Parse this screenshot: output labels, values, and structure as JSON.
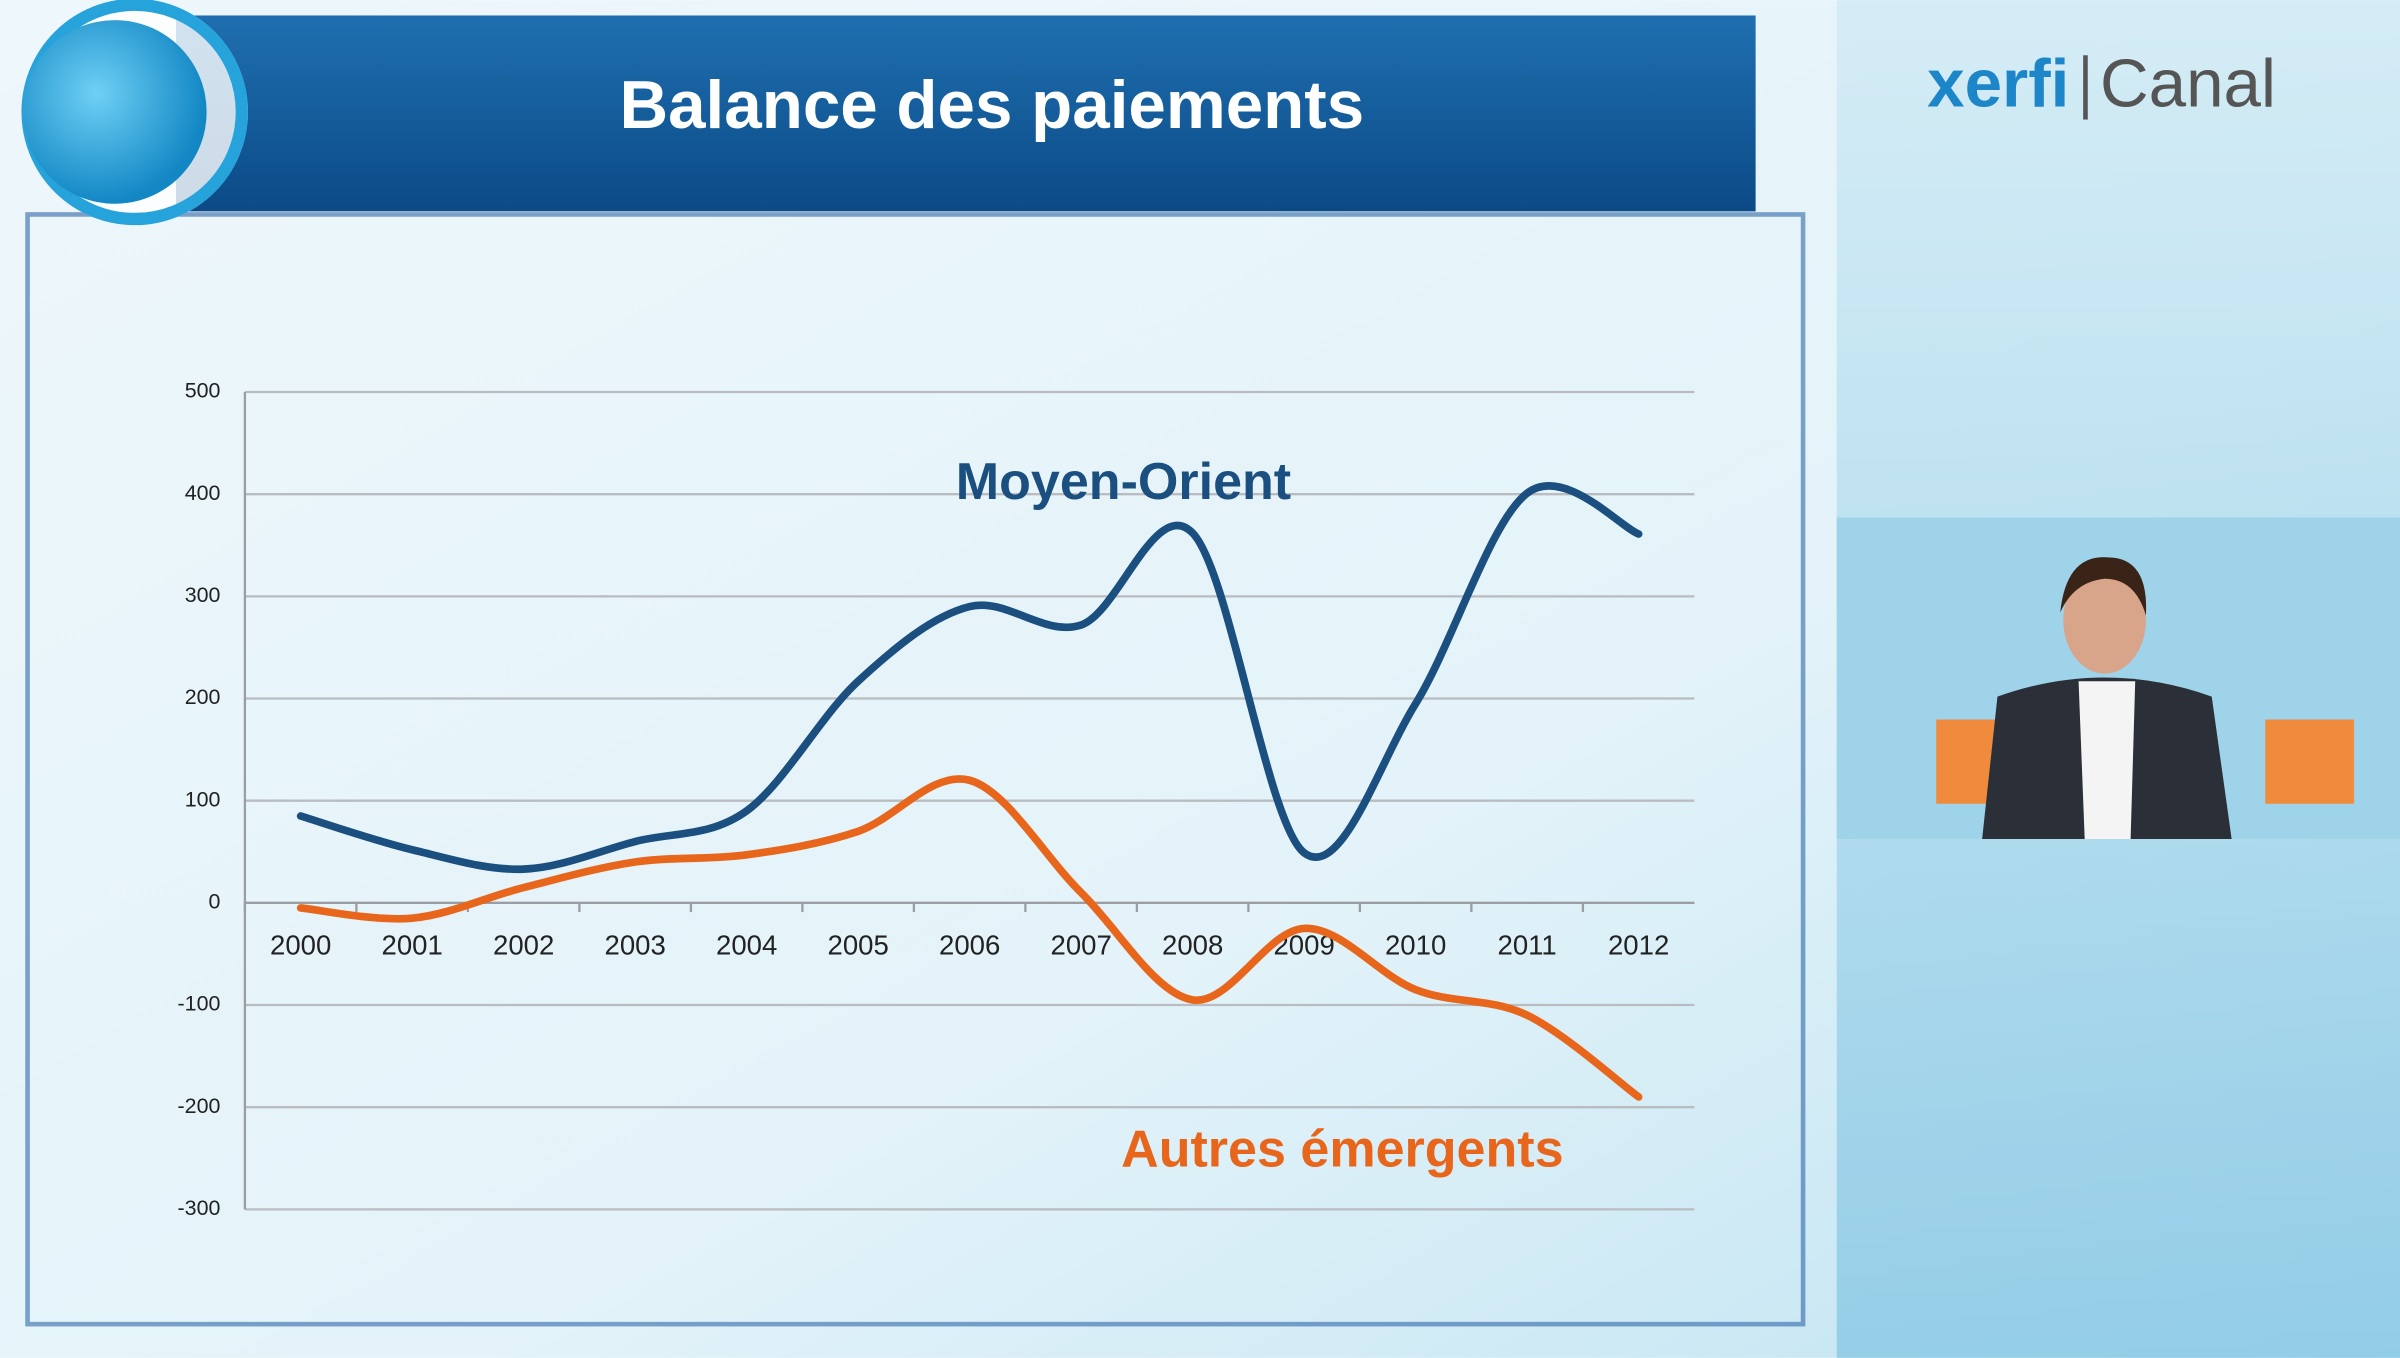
{
  "chart_data": {
    "type": "line",
    "title": "Balance des paiements",
    "brand": {
      "name": "xerfi",
      "channel": "Canal"
    },
    "categories": [
      "2000",
      "2001",
      "2002",
      "2003",
      "2004",
      "2005",
      "2006",
      "2007",
      "2008",
      "2009",
      "2010",
      "2011",
      "2012"
    ],
    "series": [
      {
        "name": "Moyen-Orient",
        "color": "#1b4f7f",
        "values": [
          85,
          52,
          33,
          60,
          90,
          217,
          290,
          272,
          362,
          49,
          195,
          401,
          361
        ]
      },
      {
        "name": "Autres émergents",
        "color": "#e8661c",
        "values": [
          -5,
          -15,
          15,
          40,
          47,
          70,
          120,
          10,
          -95,
          -25,
          -85,
          -110,
          -190
        ]
      }
    ],
    "ylim": [
      -300,
      500
    ],
    "yticks": [
      -300,
      -200,
      -100,
      0,
      100,
      200,
      300,
      400,
      500
    ],
    "grid": true,
    "smooth": true
  }
}
